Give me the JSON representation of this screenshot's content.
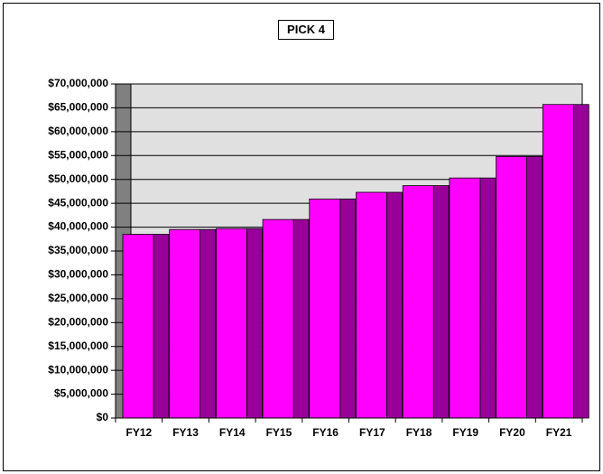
{
  "chart_data": {
    "type": "bar",
    "title": "PICK 4",
    "categories": [
      "FY12",
      "FY13",
      "FY14",
      "FY15",
      "FY16",
      "FY17",
      "FY18",
      "FY19",
      "FY20",
      "FY21"
    ],
    "values": [
      38500000,
      39500000,
      39700000,
      41600000,
      45900000,
      47300000,
      48700000,
      50300000,
      54800000,
      65700000
    ],
    "color": "#ff00ff",
    "side_color": "#990099",
    "ylim": [
      0,
      70000000
    ],
    "yticks": [
      {
        "value": 0,
        "label": "$0"
      },
      {
        "value": 5000000,
        "label": "$5,000,000"
      },
      {
        "value": 10000000,
        "label": "$10,000,000"
      },
      {
        "value": 15000000,
        "label": "$15,000,000"
      },
      {
        "value": 20000000,
        "label": "$20,000,000"
      },
      {
        "value": 25000000,
        "label": "$25,000,000"
      },
      {
        "value": 30000000,
        "label": "$30,000,000"
      },
      {
        "value": 35000000,
        "label": "$35,000,000"
      },
      {
        "value": 40000000,
        "label": "$40,000,000"
      },
      {
        "value": 45000000,
        "label": "$45,000,000"
      },
      {
        "value": 50000000,
        "label": "$50,000,000"
      },
      {
        "value": 55000000,
        "label": "$55,000,000"
      },
      {
        "value": 60000000,
        "label": "$60,000,000"
      },
      {
        "value": 65000000,
        "label": "$65,000,000"
      },
      {
        "value": 70000000,
        "label": "$70,000,000"
      }
    ],
    "grid": true
  }
}
